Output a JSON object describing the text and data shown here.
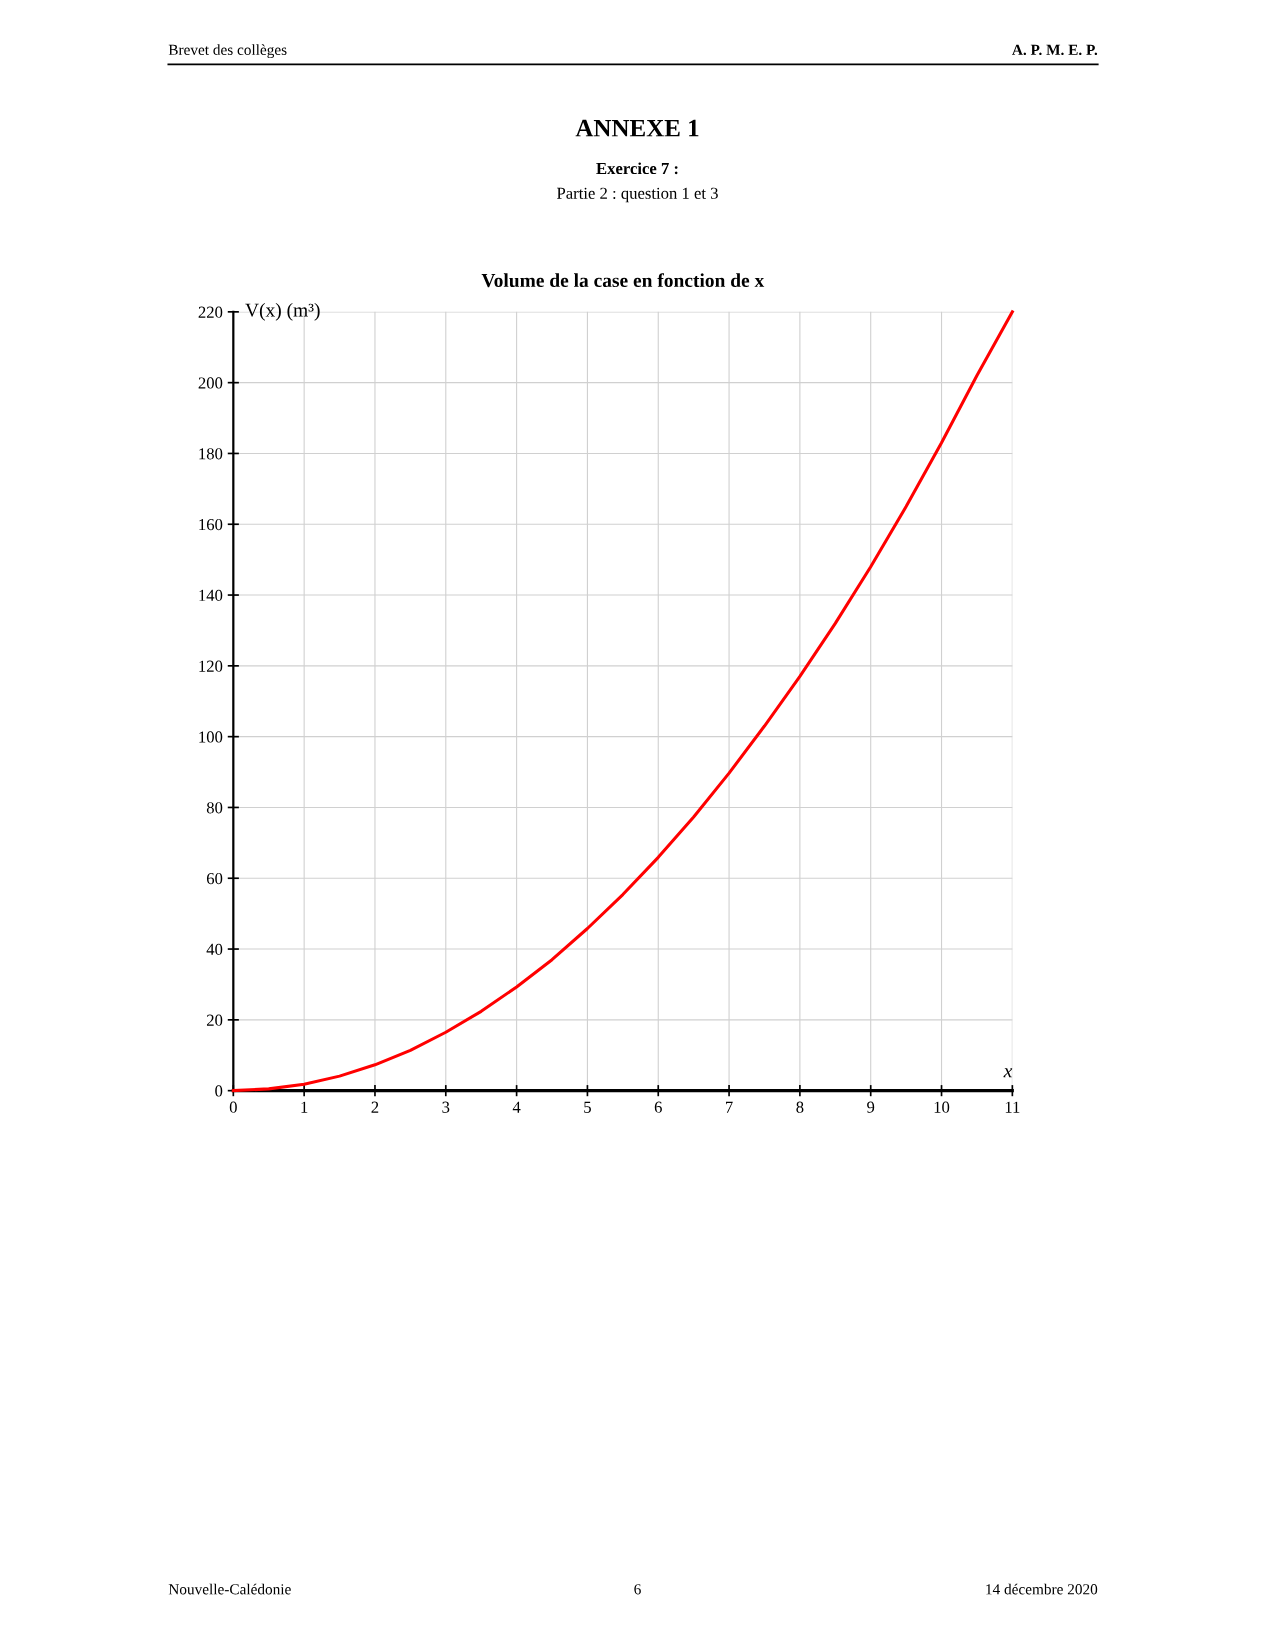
{
  "chart_data": {
    "type": "line",
    "title": "Volume de la case en fonction de x",
    "xlabel": "x",
    "ylabel": "V(x) (m³)",
    "x": [
      0,
      0.5,
      1,
      1.5,
      2,
      2.5,
      3,
      3.5,
      4,
      4.5,
      5,
      5.5,
      6,
      6.5,
      7,
      7.5,
      8,
      8.5,
      9,
      9.5,
      10,
      10.5,
      11
    ],
    "series": [
      {
        "color": "#ff0000",
        "values": [
          0,
          0.5,
          1.8,
          4.1,
          7.3,
          11.4,
          16.5,
          22.4,
          29.3,
          37,
          45.8,
          55.4,
          65.9,
          77.3,
          89.7,
          103,
          117,
          132,
          148,
          165,
          183,
          202,
          220
        ]
      }
    ],
    "xlim": [
      0,
      11
    ],
    "xticks": [
      0,
      1,
      2,
      3,
      4,
      5,
      6,
      7,
      8,
      9,
      10,
      11
    ],
    "ylim": [
      0,
      220
    ],
    "yticks": [
      0,
      20,
      40,
      60,
      80,
      100,
      120,
      140,
      160,
      180,
      200,
      220
    ],
    "grid": true,
    "marker": "none",
    "line_style": "solid",
    "legend": false,
    "annotations": [
      "Brevet des collèges",
      "A. P. M. E. P.",
      "ANNEXE 1",
      "Exercice 7 :",
      "Partie 2 : question 1 et 3",
      "Nouvelle-Calédonie",
      "6",
      "14 décembre 2020"
    ]
  }
}
